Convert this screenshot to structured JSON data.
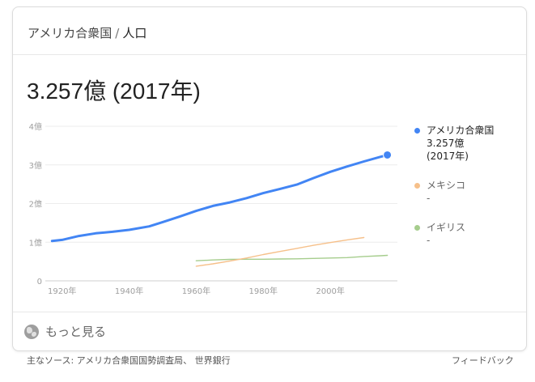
{
  "breadcrumb": {
    "entity": "アメリカ合衆国",
    "separator": "/",
    "topic": "人口"
  },
  "headline": "3.257億 (2017年)",
  "legend": [
    {
      "name": "アメリカ合衆国",
      "value": "3.257億",
      "year": "(2017年)",
      "color": "#4285f4"
    },
    {
      "name": "メキシコ",
      "value": "-",
      "color": "#f6c08a"
    },
    {
      "name": "イギリス",
      "value": "-",
      "color": "#a6cd8d"
    }
  ],
  "more_label": "もっと見る",
  "footer": {
    "sources": "主なソース: アメリカ合衆国国勢調査局、 世界銀行",
    "feedback": "フィードバック"
  },
  "chart_data": {
    "type": "line",
    "ylabel_ticks": [
      "0",
      "1億",
      "2億",
      "3億",
      "4億"
    ],
    "x_ticks": [
      "1920年",
      "1940年",
      "1960年",
      "1980年",
      "2000年"
    ],
    "xlim": [
      1915,
      2020
    ],
    "ylim": [
      0,
      4
    ],
    "grid": true,
    "legend_position": "right",
    "series": [
      {
        "name": "アメリカ合衆国",
        "color": "#4285f4",
        "x": [
          1917,
          1920,
          1925,
          1930,
          1935,
          1940,
          1946,
          1950,
          1955,
          1960,
          1965,
          1970,
          1975,
          1980,
          1985,
          1990,
          1995,
          2000,
          2005,
          2010,
          2015,
          2017
        ],
        "y": [
          1.03,
          1.06,
          1.16,
          1.23,
          1.27,
          1.32,
          1.41,
          1.52,
          1.66,
          1.81,
          1.94,
          2.03,
          2.14,
          2.27,
          2.38,
          2.49,
          2.66,
          2.82,
          2.96,
          3.09,
          3.21,
          3.257
        ]
      },
      {
        "name": "メキシコ",
        "color": "#f6c08a",
        "x": [
          1960,
          1965,
          1970,
          1975,
          1980,
          1985,
          1990,
          1995,
          2000,
          2005,
          2010
        ],
        "y": [
          0.38,
          0.44,
          0.51,
          0.59,
          0.68,
          0.76,
          0.84,
          0.92,
          0.99,
          1.06,
          1.12
        ]
      },
      {
        "name": "イギリス",
        "color": "#a6cd8d",
        "x": [
          1960,
          1965,
          1970,
          1975,
          1980,
          1985,
          1990,
          1995,
          2000,
          2005,
          2010,
          2015,
          2017
        ],
        "y": [
          0.52,
          0.54,
          0.555,
          0.56,
          0.56,
          0.565,
          0.57,
          0.58,
          0.59,
          0.6,
          0.63,
          0.65,
          0.66
        ]
      }
    ]
  }
}
